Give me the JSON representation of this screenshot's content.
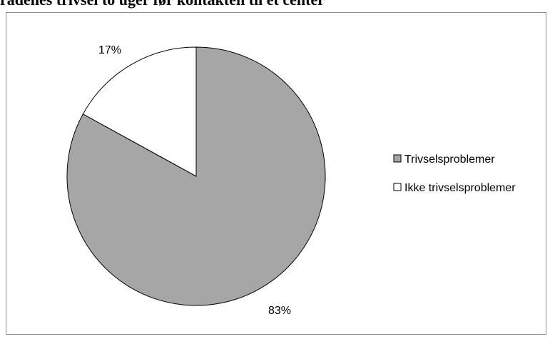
{
  "chart_data": {
    "type": "pie",
    "title": "rådenes trivsel to uger før kontakten til et center",
    "start_angle": "top",
    "direction": "clockwise",
    "legend_position": "right",
    "slices": [
      {
        "name": "Trivselsproblemer",
        "value": 83,
        "label": "83%",
        "color": "#a6a6a6"
      },
      {
        "name": "Ikke trivselsproblemer",
        "value": 17,
        "label": "17%",
        "color": "#ffffff"
      }
    ]
  }
}
